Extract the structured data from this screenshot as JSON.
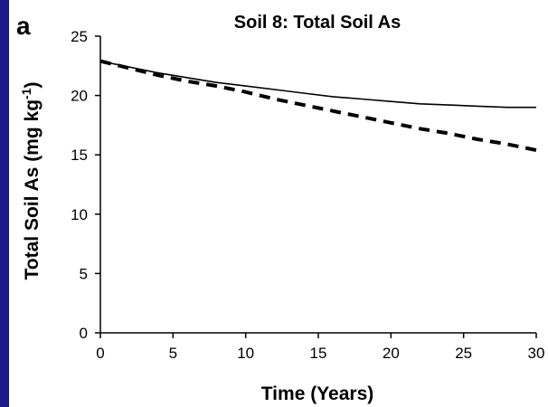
{
  "chart_data": {
    "type": "line",
    "panel_label": "a",
    "title": "Soil 8: Total Soil As",
    "xlabel": "Time (Years)",
    "ylabel_main": "Total Soil As (mg kg",
    "ylabel_sup": "-1",
    "ylabel_tail": ")",
    "xlim": [
      0,
      30
    ],
    "ylim": [
      0,
      25
    ],
    "xticks": [
      0,
      5,
      10,
      15,
      20,
      25,
      30
    ],
    "yticks": [
      0,
      5,
      10,
      15,
      20,
      25
    ],
    "grid": false,
    "legend": "none",
    "series": [
      {
        "style": "solid",
        "color": "#000000",
        "x": [
          0,
          2,
          4,
          6,
          8,
          10,
          12,
          14,
          16,
          18,
          20,
          22,
          24,
          26,
          28,
          30
        ],
        "y": [
          22.9,
          22.4,
          21.9,
          21.5,
          21.1,
          20.8,
          20.5,
          20.2,
          19.9,
          19.7,
          19.5,
          19.3,
          19.2,
          19.1,
          19.0,
          19.0
        ]
      },
      {
        "style": "dashed",
        "color": "#000000",
        "x": [
          0,
          2,
          4,
          6,
          8,
          10,
          12,
          14,
          16,
          18,
          20,
          22,
          24,
          26,
          28,
          30
        ],
        "y": [
          22.9,
          22.3,
          21.7,
          21.2,
          20.8,
          20.3,
          19.7,
          19.2,
          18.7,
          18.2,
          17.7,
          17.2,
          16.8,
          16.3,
          15.9,
          15.4
        ]
      }
    ]
  }
}
